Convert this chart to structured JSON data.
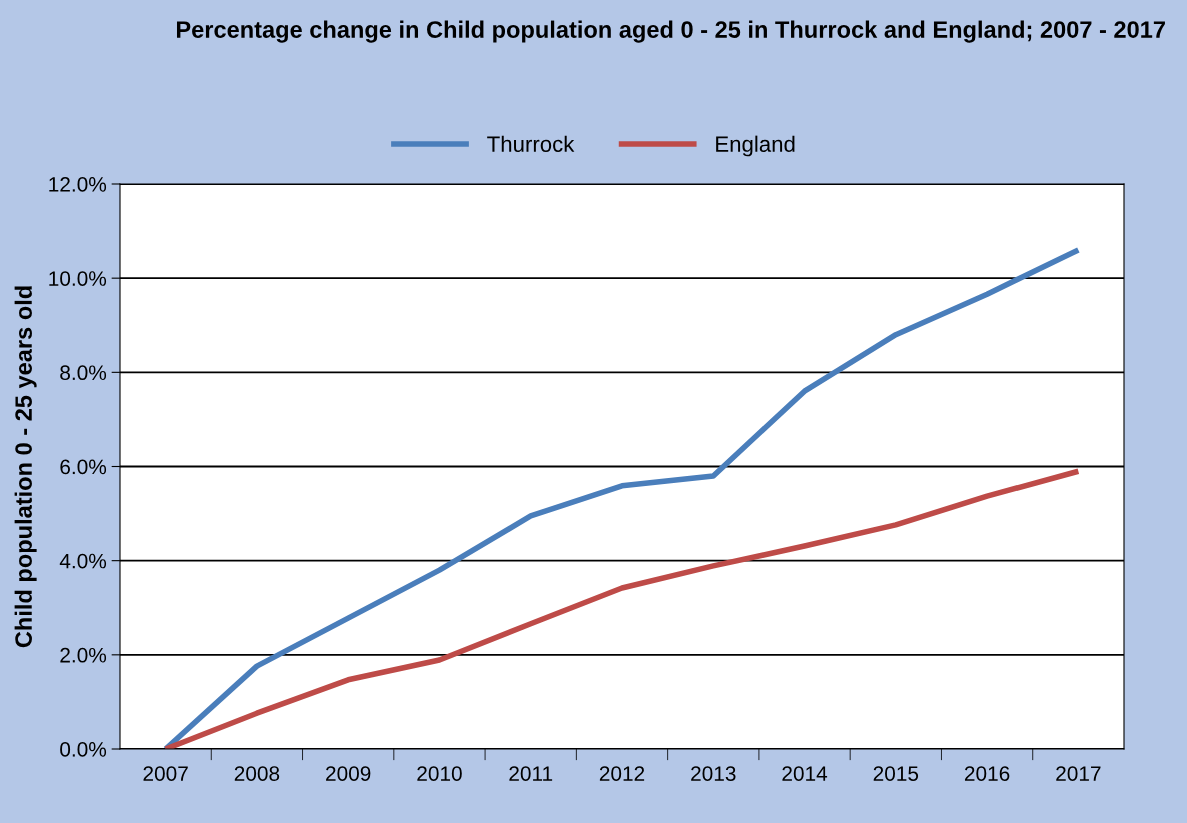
{
  "chart_data": {
    "type": "line",
    "title": "Percentage change in Child population aged 0 - 25 in Thurrock and England; 2007 - 2017",
    "ylabel": "Child population 0 - 25 years old",
    "categories": [
      "2007",
      "2008",
      "2009",
      "2010",
      "2011",
      "2012",
      "2013",
      "2014",
      "2015",
      "2016",
      "2017"
    ],
    "series": [
      {
        "name": "Thurrock",
        "color": "#4a7ebb",
        "values": [
          0,
          1.76,
          2.78,
          3.8,
          4.95,
          5.59,
          5.8,
          7.6,
          8.8,
          9.66,
          10.6
        ]
      },
      {
        "name": "England",
        "color": "#be4b48",
        "values": [
          0,
          0.76,
          1.47,
          1.89,
          2.66,
          3.42,
          3.89,
          4.31,
          4.76,
          5.37,
          5.9
        ]
      }
    ],
    "ylim": [
      0,
      12
    ],
    "yticks": [
      {
        "value": 0,
        "label": "0.0%"
      },
      {
        "value": 2,
        "label": "2.0%"
      },
      {
        "value": 4,
        "label": "4.0%"
      },
      {
        "value": 6,
        "label": "6.0%"
      },
      {
        "value": 8,
        "label": "8.0%"
      },
      {
        "value": 10,
        "label": "10.0%"
      },
      {
        "value": 12,
        "label": "12.0%"
      }
    ],
    "grid": "y",
    "legend": "top",
    "marker": "none",
    "line_style": "solid"
  }
}
